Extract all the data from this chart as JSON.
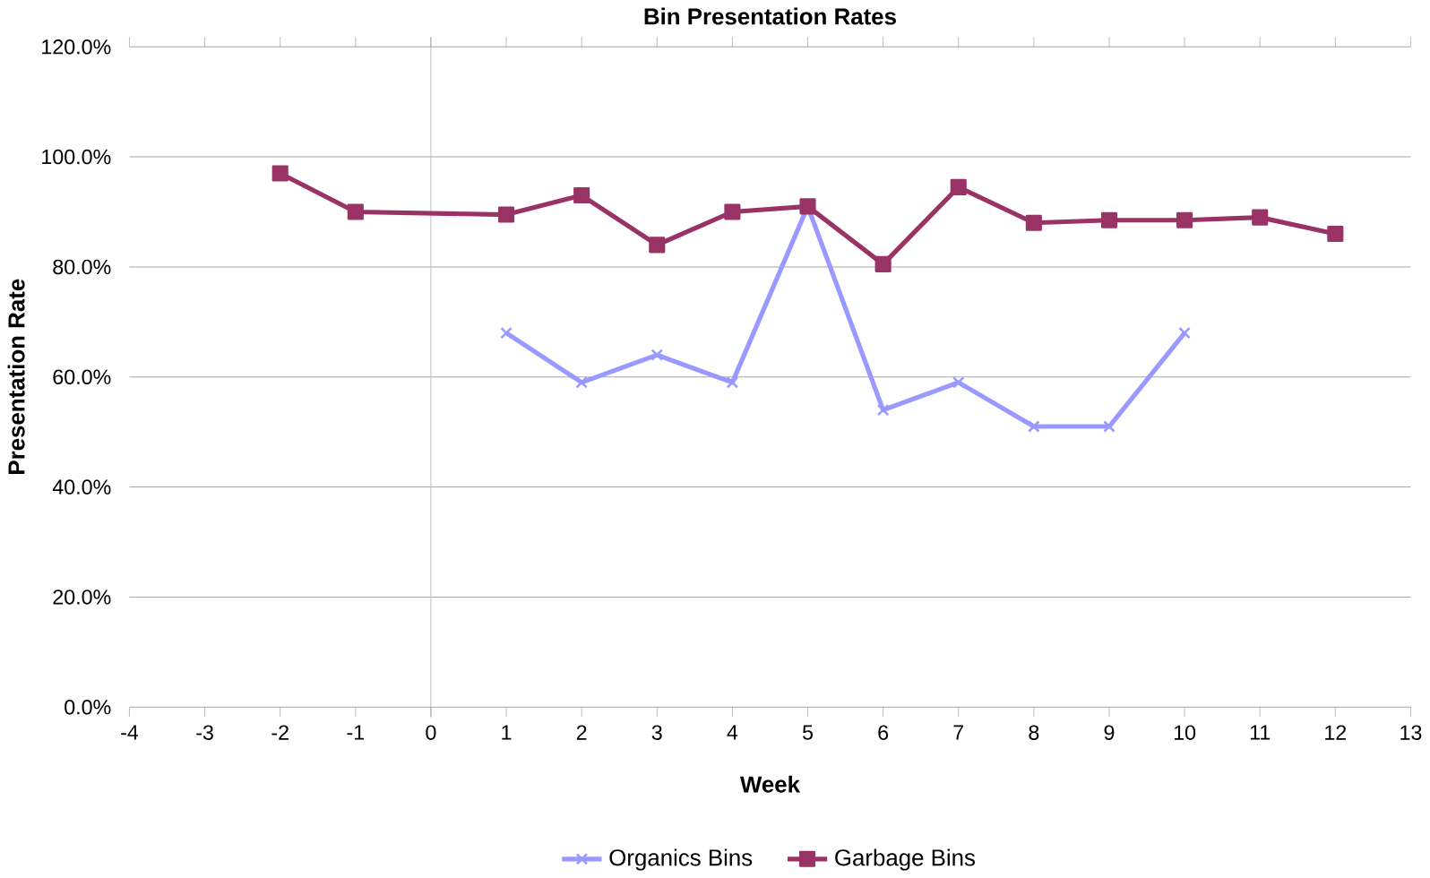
{
  "chart_data": {
    "type": "line",
    "title": "Bin Presentation Rates",
    "xlabel": "Week",
    "ylabel": "Presentation Rate",
    "xlim": [
      -4,
      13
    ],
    "xticks": [
      -4,
      -3,
      -2,
      -1,
      0,
      1,
      2,
      3,
      4,
      5,
      6,
      7,
      8,
      9,
      10,
      11,
      12,
      13
    ],
    "ylim": [
      0,
      120
    ],
    "yticks": [
      {
        "value": 0,
        "label": "0.0%"
      },
      {
        "value": 20,
        "label": "20.0%"
      },
      {
        "value": 40,
        "label": "40.0%"
      },
      {
        "value": 60,
        "label": "60.0%"
      },
      {
        "value": 80,
        "label": "80.0%"
      },
      {
        "value": 100,
        "label": "100.0%"
      },
      {
        "value": 120,
        "label": "120.0%"
      }
    ],
    "grid": "y",
    "legend": "bottom",
    "series": [
      {
        "name": "Organics Bins",
        "color": "#9999ff",
        "marker": "cross",
        "x": [
          1,
          2,
          3,
          4,
          5,
          6,
          7,
          8,
          9,
          10
        ],
        "values": [
          68,
          59,
          64,
          59,
          91,
          54,
          59,
          51,
          51,
          68
        ]
      },
      {
        "name": "Garbage Bins",
        "color": "#993366",
        "marker": "square",
        "x": [
          -2,
          -1,
          1,
          2,
          3,
          4,
          5,
          6,
          7,
          8,
          9,
          10,
          11,
          12
        ],
        "values": [
          97,
          90,
          89.5,
          93,
          84,
          90,
          91,
          80.5,
          94.5,
          88,
          88.5,
          88.5,
          89,
          86
        ]
      }
    ]
  }
}
